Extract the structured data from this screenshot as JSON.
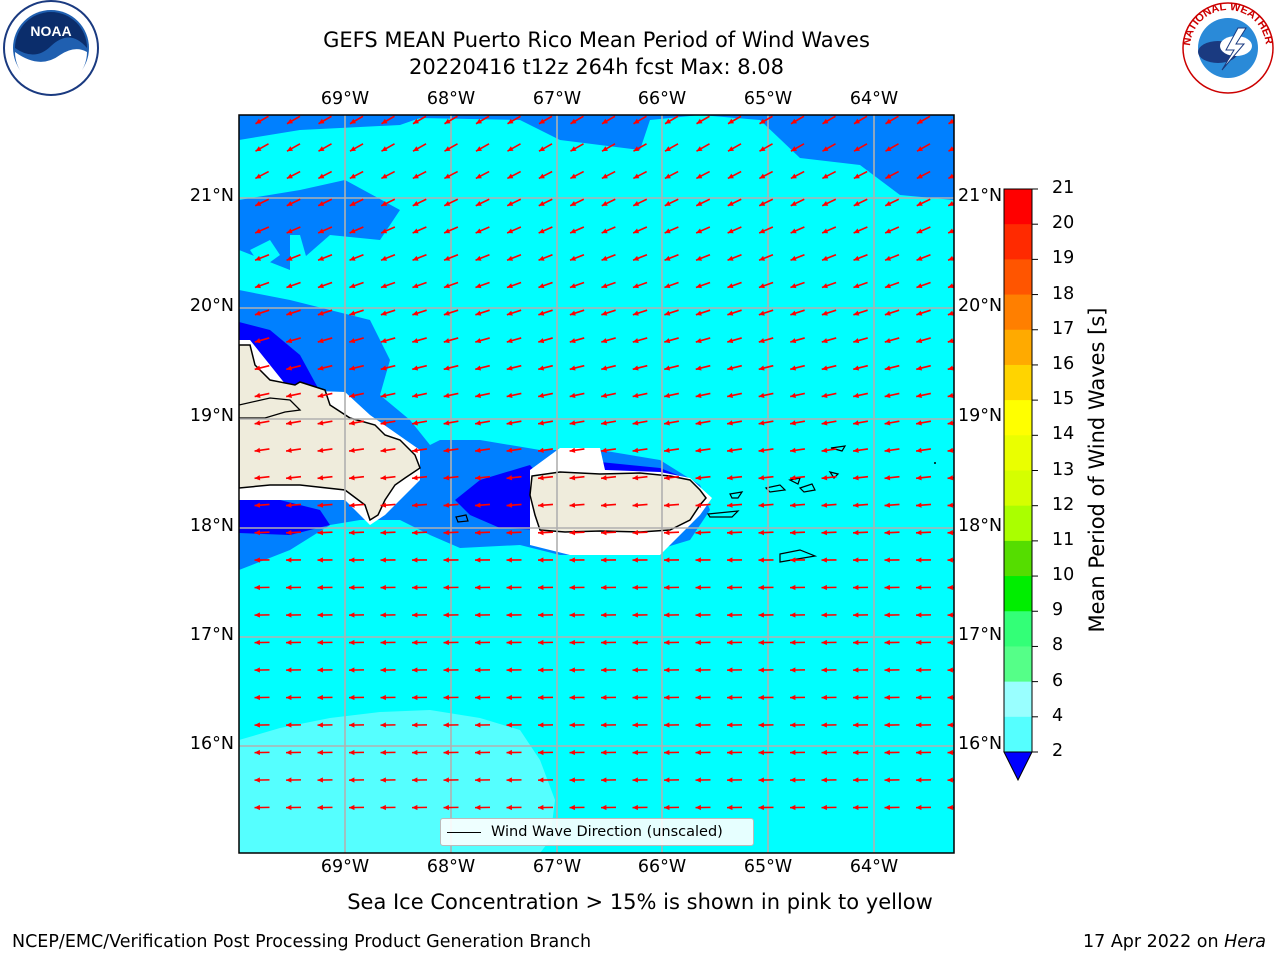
{
  "title": {
    "line1": "GEFS MEAN Puerto Rico Mean Period of Wind Waves",
    "line2": "20220416 t12z 264h fcst   Max: 8.08"
  },
  "map": {
    "lat_labels": [
      "21°N",
      "20°N",
      "19°N",
      "18°N",
      "17°N",
      "16°N"
    ],
    "lon_labels": [
      "69°W",
      "68°W",
      "67°W",
      "66°W",
      "65°W",
      "64°W"
    ],
    "legend_label": "Wind Wave Direction (unscaled)",
    "colors": {
      "land": "#efecdc",
      "ocean_4_6": "#00ffff",
      "ocean_2_4": "#0080ff",
      "ocean_under_2": "#0000ff",
      "ocean_6_8": "#55ffff",
      "arrow": "#ff0000",
      "grid": "#b0b0b0"
    },
    "arrow_direction": "toward southwest in north, toward west in south"
  },
  "colorbar": {
    "title": "Mean Period of Wind Waves [s]",
    "ticks": [
      "21",
      "20",
      "19",
      "18",
      "17",
      "16",
      "15",
      "14",
      "13",
      "12",
      "11",
      "10",
      "9",
      "8",
      "6",
      "4",
      "2"
    ],
    "colors": [
      "#ff0000",
      "#ff2a00",
      "#ff5500",
      "#ff7f00",
      "#ffaa00",
      "#ffd400",
      "#ffff00",
      "#eaff00",
      "#d5ff00",
      "#aaff00",
      "#55dd00",
      "#00ee00",
      "#33ff77",
      "#55ff88",
      "#99ffff",
      "#55ffff",
      "#00ffff",
      "#0080ff"
    ],
    "extend_color": "#0000ff"
  },
  "footer": {
    "sea_ice_note": "Sea Ice Concentration > 15% is shown in pink to yellow",
    "left": "NCEP/EMC/Verification Post Processing Product Generation Branch",
    "date": "17 Apr 2022 on ",
    "machine": "Hera"
  },
  "logos": {
    "noaa": "NOAA",
    "nws": "NATIONAL WEATHER SERVICE"
  }
}
